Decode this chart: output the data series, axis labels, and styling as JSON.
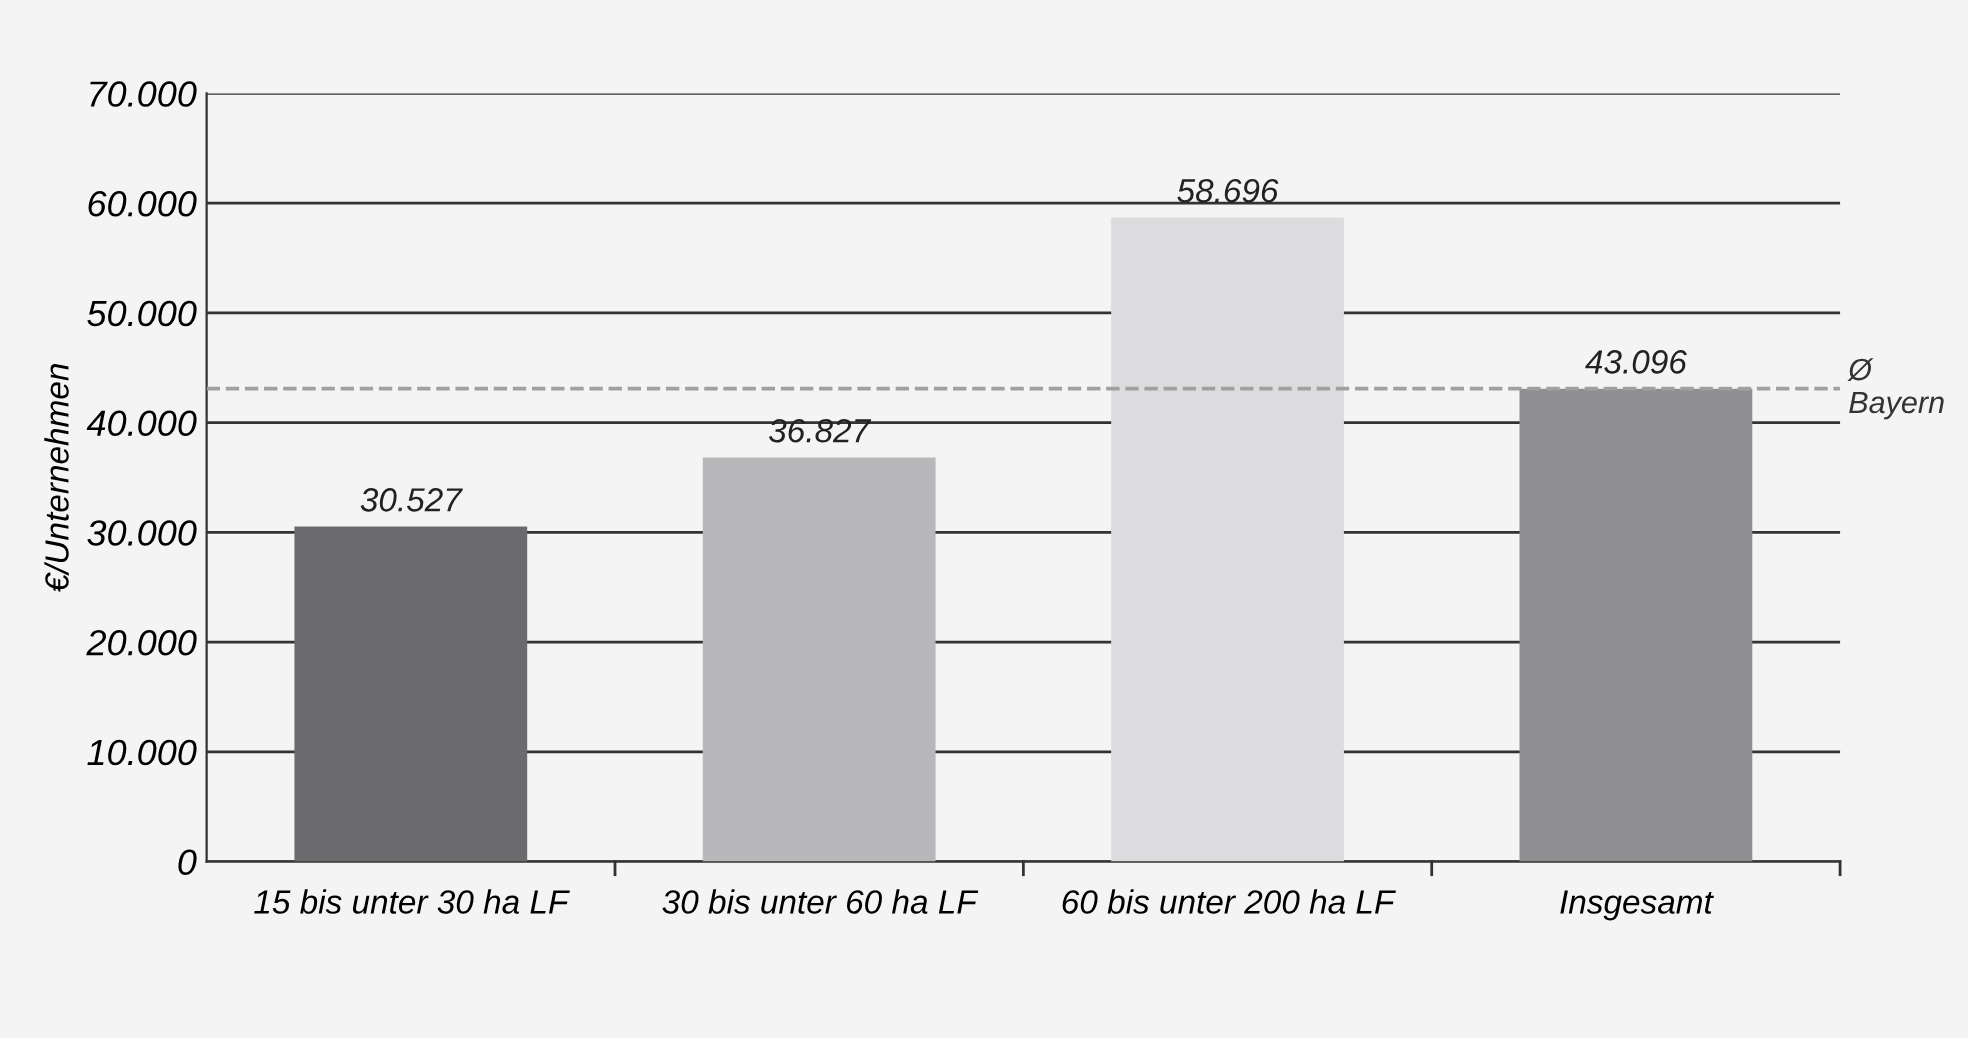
{
  "chart_data": {
    "type": "bar",
    "ylabel": "€/Unternehmen",
    "categories": [
      "15 bis unter 30 ha LF",
      "30 bis unter 60 ha LF",
      "60 bis unter 200 ha LF",
      "Insgesamt"
    ],
    "values": [
      30527,
      36827,
      58696,
      43096
    ],
    "colors": [
      "#6b6b6d",
      "#b8b8ba",
      "#dcdcde",
      "#8f8f91"
    ],
    "value_labels": [
      "30.527",
      "36.827",
      "58.696",
      "43.096"
    ],
    "ylim": [
      0,
      70000
    ],
    "yticks": [
      {
        "value": 0,
        "label": "0"
      },
      {
        "value": 10000,
        "label": "10.000"
      },
      {
        "value": 20000,
        "label": "20.000"
      },
      {
        "value": 30000,
        "label": "30.000"
      },
      {
        "value": 40000,
        "label": "40.000"
      },
      {
        "value": 50000,
        "label": "50.000"
      },
      {
        "value": 60000,
        "label": "60.000"
      },
      {
        "value": 70000,
        "label": "70.000"
      }
    ],
    "grid": "y",
    "legend": false,
    "ref_lines": [
      {
        "axis": "y",
        "value": 43096,
        "label": "Ø\nBayern",
        "color": "#a0a0a0",
        "line_style": "dashed"
      }
    ]
  }
}
